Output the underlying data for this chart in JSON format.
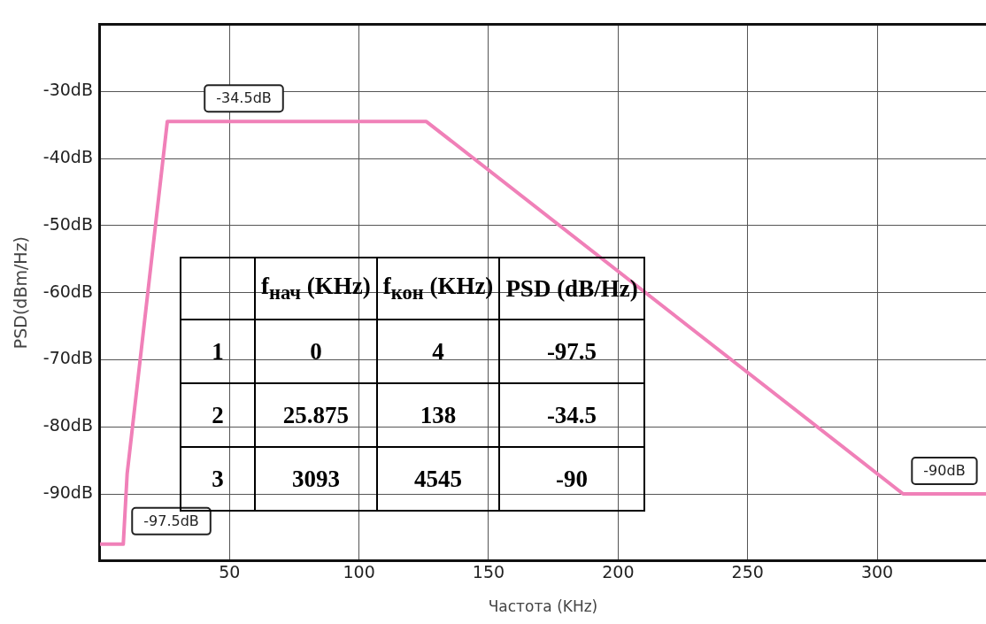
{
  "chart_data": {
    "type": "line",
    "xlabel": "Частота (KHz)",
    "ylabel": "PSD(dBm/Hz)",
    "x": [
      0,
      9,
      10.5,
      26,
      126,
      310,
      342
    ],
    "series": [
      {
        "color": "#f080b8",
        "values": [
          -97.5,
          -97.5,
          -87,
          -34.5,
          -34.5,
          -90,
          -90
        ]
      }
    ],
    "xlim": [
      0,
      342
    ],
    "xticks": [
      50,
      100,
      150,
      200,
      250,
      300
    ],
    "ylim": [
      -100,
      -20
    ],
    "yticks": [
      {
        "value": -100,
        "label": null
      },
      {
        "value": -90,
        "label": "-90dB"
      },
      {
        "value": -80,
        "label": "-80dB"
      },
      {
        "value": -70,
        "label": "-70dB"
      },
      {
        "value": -60,
        "label": "-60dB"
      },
      {
        "value": -50,
        "label": "-50dB"
      },
      {
        "value": -40,
        "label": "-40dB"
      },
      {
        "value": -30,
        "label": "-30dB"
      },
      {
        "value": -20,
        "label": null
      }
    ],
    "grid": true,
    "marker": "none",
    "line_style": "solid",
    "legend": false,
    "annotations": [
      {
        "text": "-34.5dB",
        "x": 37,
        "y": -34.5
      },
      {
        "text": "-97.5dB",
        "x": 9,
        "y": -97.5
      },
      {
        "text": "-90dB",
        "x": 310,
        "y": -90
      },
      "f$_{нач}$ (KHz)",
      "f$_{кон}$ (KHz)",
      "PSD (dB/Hz)",
      "1",
      "0",
      "4",
      "-97.5",
      "2",
      "25.875",
      "138",
      "-34.5",
      "3",
      "3093",
      "4545",
      "-90"
    ]
  }
}
